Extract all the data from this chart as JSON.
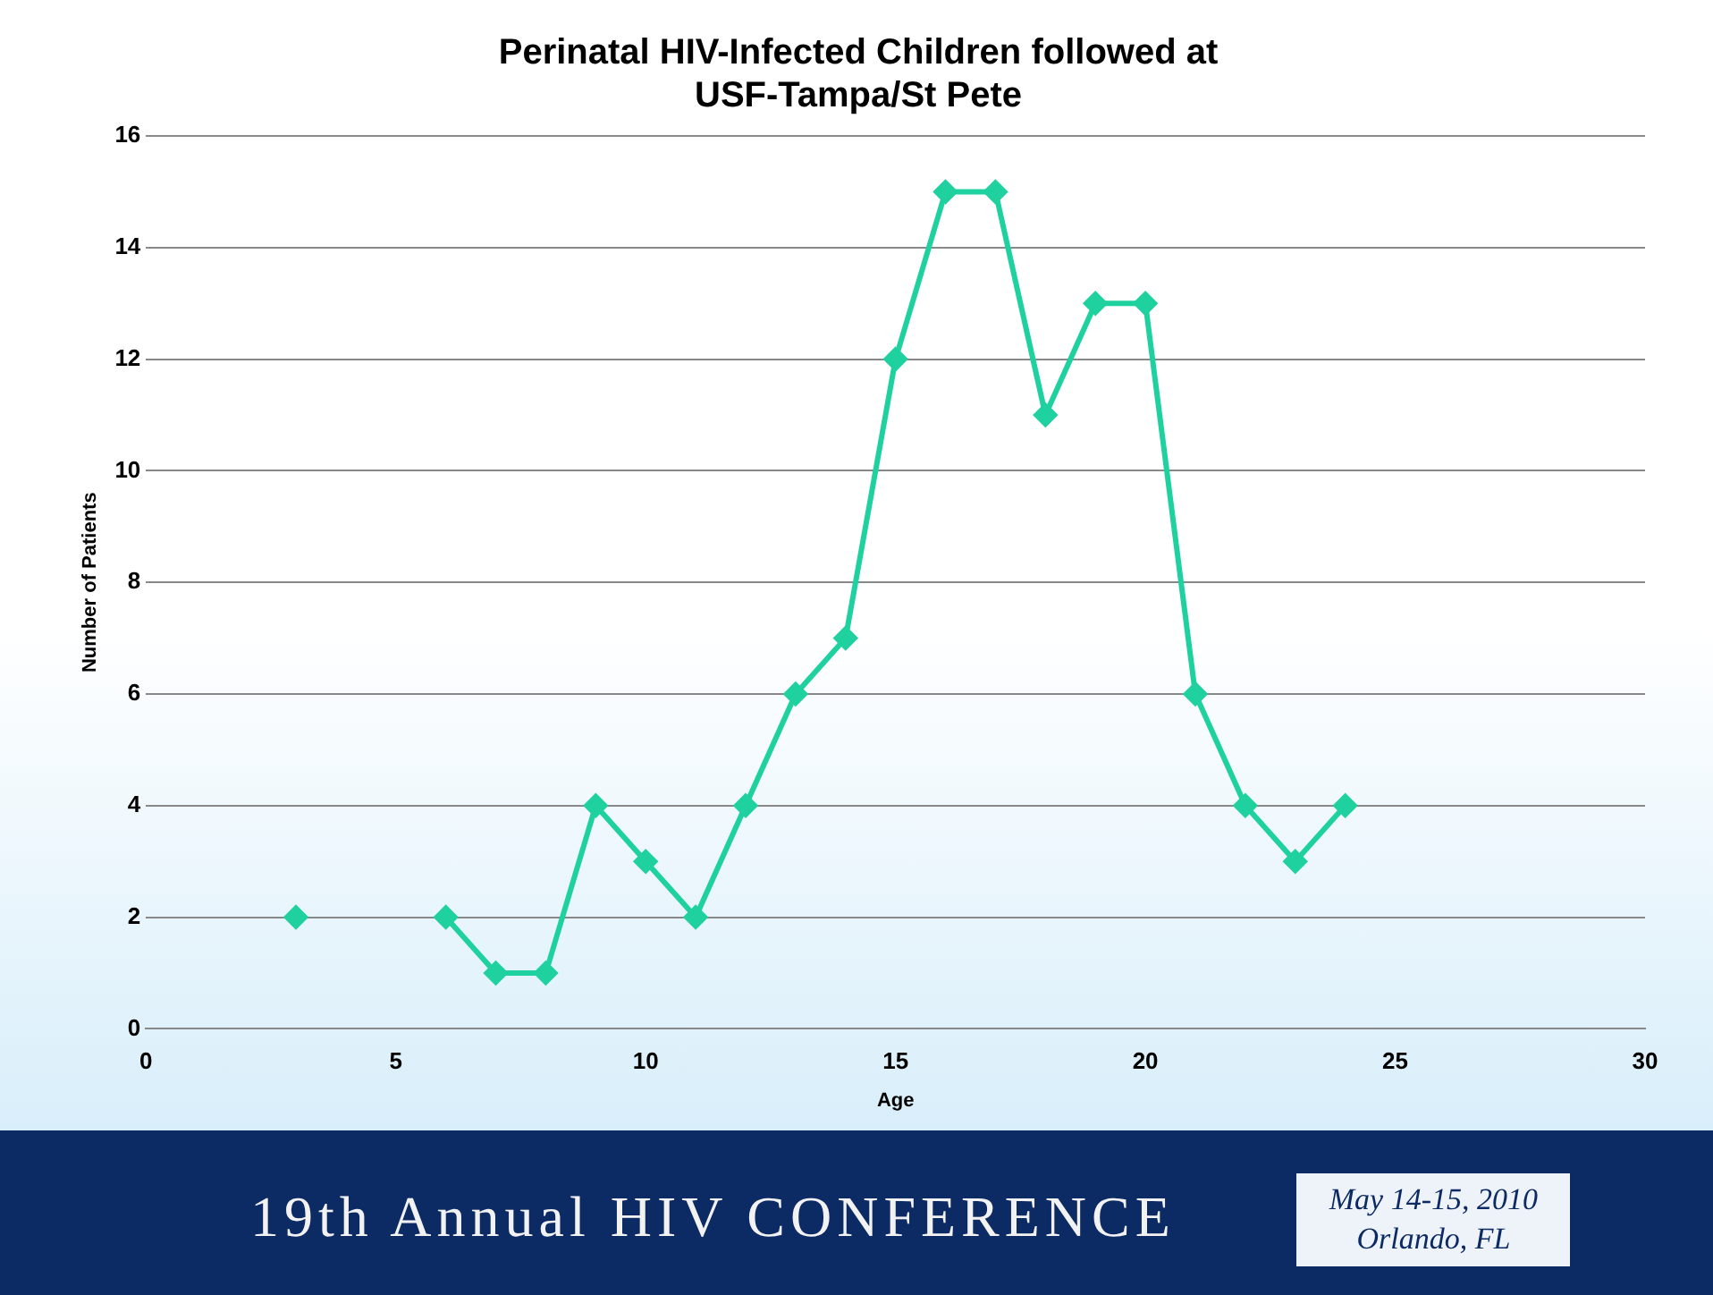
{
  "chart_data": {
    "type": "line",
    "title": [
      "Perinatal HIV-Infected Children followed at",
      "USF-Tampa/St Pete"
    ],
    "xlabel": "Age",
    "ylabel": "Number of Patients",
    "x": [
      3,
      4,
      5,
      6,
      7,
      8,
      9,
      10,
      11,
      12,
      13,
      14,
      15,
      16,
      17,
      18,
      19,
      20,
      21,
      22,
      23,
      24
    ],
    "series": [
      {
        "color": "#1fd19e",
        "values": [
          2,
          null,
          null,
          2,
          1,
          1,
          4,
          3,
          2,
          4,
          6,
          7,
          12,
          15,
          15,
          11,
          13,
          13,
          6,
          4,
          3,
          4
        ]
      }
    ],
    "xlim": [
      0,
      30
    ],
    "xticks": [
      0,
      5,
      10,
      15,
      20,
      25,
      30
    ],
    "ylim": [
      0,
      16
    ],
    "yticks": [
      0,
      2,
      4,
      6,
      8,
      10,
      12,
      14,
      16
    ],
    "grid": "y",
    "legend": false,
    "marker": "diamond",
    "line_style": "solid",
    "annotations": [
      "19th Annual HIV CONFERENCE",
      "May 14-15, 2010",
      "Orlando, FL"
    ]
  }
}
